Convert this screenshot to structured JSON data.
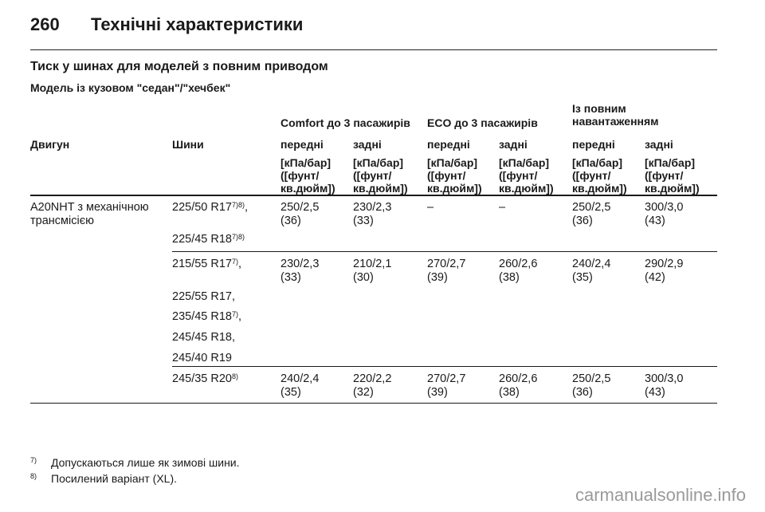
{
  "page": {
    "number": "260",
    "title": "Технічні характеристики"
  },
  "section_title": "Тиск у шинах для моделей з повним приводом",
  "subsection_title": "Модель із кузовом \"седан\"/\"хечбек\"",
  "table": {
    "groups": {
      "comfort": "Comfort до 3 пасажирів",
      "eco": "ECO до 3 пасажирів",
      "full_1": "Із повним",
      "full_2": "навантаженням"
    },
    "columns": {
      "engine": "Двигун",
      "tyres": "Шини",
      "front": "передні",
      "rear": "задні"
    },
    "unit": {
      "line1": "[кПа/бар]",
      "line2": "([фунт/",
      "line3": "кв.дюйм])"
    },
    "engine": {
      "line1": "A20NHT з механічною",
      "line2": "трансмісією"
    },
    "rows": [
      {
        "tyres": [
          {
            "text": "225/50 R17",
            "sup": "7)8)",
            "suffix": ","
          },
          {
            "text": "225/45 R18",
            "sup": "7)8)",
            "suffix": ""
          }
        ],
        "values": [
          {
            "kpa": "250/2,5",
            "psi": "(36)"
          },
          {
            "kpa": "230/2,3",
            "psi": "(33)"
          },
          {
            "kpa": "–",
            "psi": ""
          },
          {
            "kpa": "–",
            "psi": ""
          },
          {
            "kpa": "250/2,5",
            "psi": "(36)"
          },
          {
            "kpa": "300/3,0",
            "psi": "(43)"
          }
        ]
      },
      {
        "tyres": [
          {
            "text": "215/55 R17",
            "sup": "7)",
            "suffix": ","
          },
          {
            "text": "225/55 R17,",
            "sup": "",
            "suffix": ""
          },
          {
            "text": "235/45 R18",
            "sup": "7)",
            "suffix": ","
          },
          {
            "text": "245/45 R18,",
            "sup": "",
            "suffix": ""
          },
          {
            "text": "245/40 R19",
            "sup": "",
            "suffix": ""
          }
        ],
        "values": [
          {
            "kpa": "230/2,3",
            "psi": "(33)"
          },
          {
            "kpa": "210/2,1",
            "psi": "(30)"
          },
          {
            "kpa": "270/2,7",
            "psi": "(39)"
          },
          {
            "kpa": "260/2,6",
            "psi": "(38)"
          },
          {
            "kpa": "240/2,4",
            "psi": "(35)"
          },
          {
            "kpa": "290/2,9",
            "psi": "(42)"
          }
        ]
      },
      {
        "tyres": [
          {
            "text": "245/35 R20",
            "sup": "8)",
            "suffix": ""
          }
        ],
        "values": [
          {
            "kpa": "240/2,4",
            "psi": "(35)"
          },
          {
            "kpa": "220/2,2",
            "psi": "(32)"
          },
          {
            "kpa": "270/2,7",
            "psi": "(39)"
          },
          {
            "kpa": "260/2,6",
            "psi": "(38)"
          },
          {
            "kpa": "250/2,5",
            "psi": "(36)"
          },
          {
            "kpa": "300/3,0",
            "psi": "(43)"
          }
        ]
      }
    ]
  },
  "footnotes": [
    {
      "mark": "7)",
      "text": "Допускаються лише як зимові шини."
    },
    {
      "mark": "8)",
      "text": "Посилений варіант (XL)."
    }
  ],
  "watermark": "carmanualsonline.info"
}
